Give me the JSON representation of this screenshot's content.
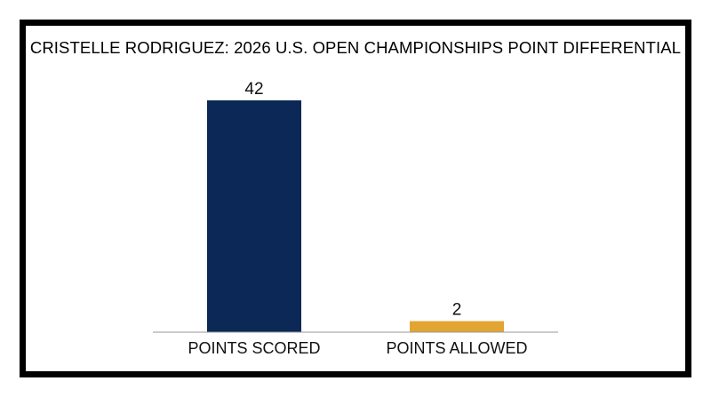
{
  "chart_data": {
    "type": "bar",
    "title": "CRISTELLE RODRIGUEZ: 2026 U.S. OPEN CHAMPIONSHIPS POINT DIFFERENTIAL",
    "categories": [
      "POINTS SCORED",
      "POINTS ALLOWED"
    ],
    "values": [
      42,
      2
    ],
    "data_labels": [
      "42",
      "2"
    ],
    "colors": [
      "#0b2856",
      "#e3a531"
    ],
    "xlabel": "",
    "ylabel": "",
    "ylim": [
      0,
      42
    ],
    "grid": false,
    "legend": "none"
  }
}
